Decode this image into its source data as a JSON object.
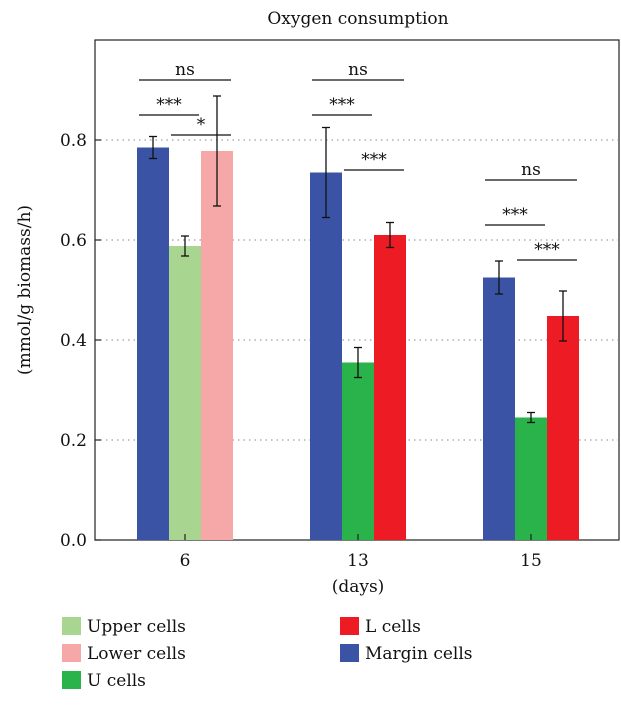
{
  "chart_data": {
    "type": "bar",
    "title": "Oxygen consumption",
    "xlabel": "(days)",
    "ylabel": "(mmol/g biomass/h)",
    "ylim": [
      0,
      1.0
    ],
    "yticks": [
      "0.0",
      "0.2",
      "0.4",
      "0.6",
      "0.8"
    ],
    "ytick_values": [
      0,
      0.2,
      0.4,
      0.6,
      0.8
    ],
    "grid": "horizontal-dotted",
    "categories": [
      "6",
      "13",
      "15"
    ],
    "groups": [
      {
        "category": "6",
        "bars": [
          {
            "series": "Margin cells",
            "value": 0.785,
            "err": 0.022
          },
          {
            "series": "Upper cells",
            "value": 0.588,
            "err": 0.02
          },
          {
            "series": "Lower cells",
            "value": 0.778,
            "err": 0.11
          }
        ],
        "annotations": [
          {
            "text": "ns",
            "from": 0,
            "to": 2,
            "level": 0.92
          },
          {
            "text": "***",
            "from": 0,
            "to": 1,
            "level": 0.85
          },
          {
            "text": "*",
            "from": 1,
            "to": 2,
            "level": 0.81
          }
        ]
      },
      {
        "category": "13",
        "bars": [
          {
            "series": "Margin cells",
            "value": 0.735,
            "err": 0.09
          },
          {
            "series": "U cells",
            "value": 0.355,
            "err": 0.03
          },
          {
            "series": "L cells",
            "value": 0.61,
            "err": 0.025
          }
        ],
        "annotations": [
          {
            "text": "ns",
            "from": 0,
            "to": 2,
            "level": 0.92
          },
          {
            "text": "***",
            "from": 0,
            "to": 1,
            "level": 0.85
          },
          {
            "text": "***",
            "from": 1,
            "to": 2,
            "level": 0.74
          }
        ]
      },
      {
        "category": "15",
        "bars": [
          {
            "series": "Margin cells",
            "value": 0.525,
            "err": 0.033
          },
          {
            "series": "U cells",
            "value": 0.245,
            "err": 0.01
          },
          {
            "series": "L cells",
            "value": 0.448,
            "err": 0.05
          }
        ],
        "annotations": [
          {
            "text": "ns",
            "from": 0,
            "to": 2,
            "level": 0.72
          },
          {
            "text": "***",
            "from": 0,
            "to": 1,
            "level": 0.63
          },
          {
            "text": "***",
            "from": 1,
            "to": 2,
            "level": 0.56
          }
        ]
      }
    ],
    "series_colors": {
      "Margin cells": "#3a53a4",
      "Upper cells": "#a8d58f",
      "Lower cells": "#f6a7a7",
      "U cells": "#2ab24b",
      "L cells": "#ed1c24"
    },
    "legend": {
      "placement": "bottom",
      "entries": [
        {
          "name": "Upper cells",
          "color": "#a8d58f"
        },
        {
          "name": "L cells",
          "color": "#ed1c24"
        },
        {
          "name": "Lower cells",
          "color": "#f6a7a7"
        },
        {
          "name": "Margin cells",
          "color": "#3a53a4"
        },
        {
          "name": "U cells",
          "color": "#2ab24b"
        }
      ]
    }
  }
}
